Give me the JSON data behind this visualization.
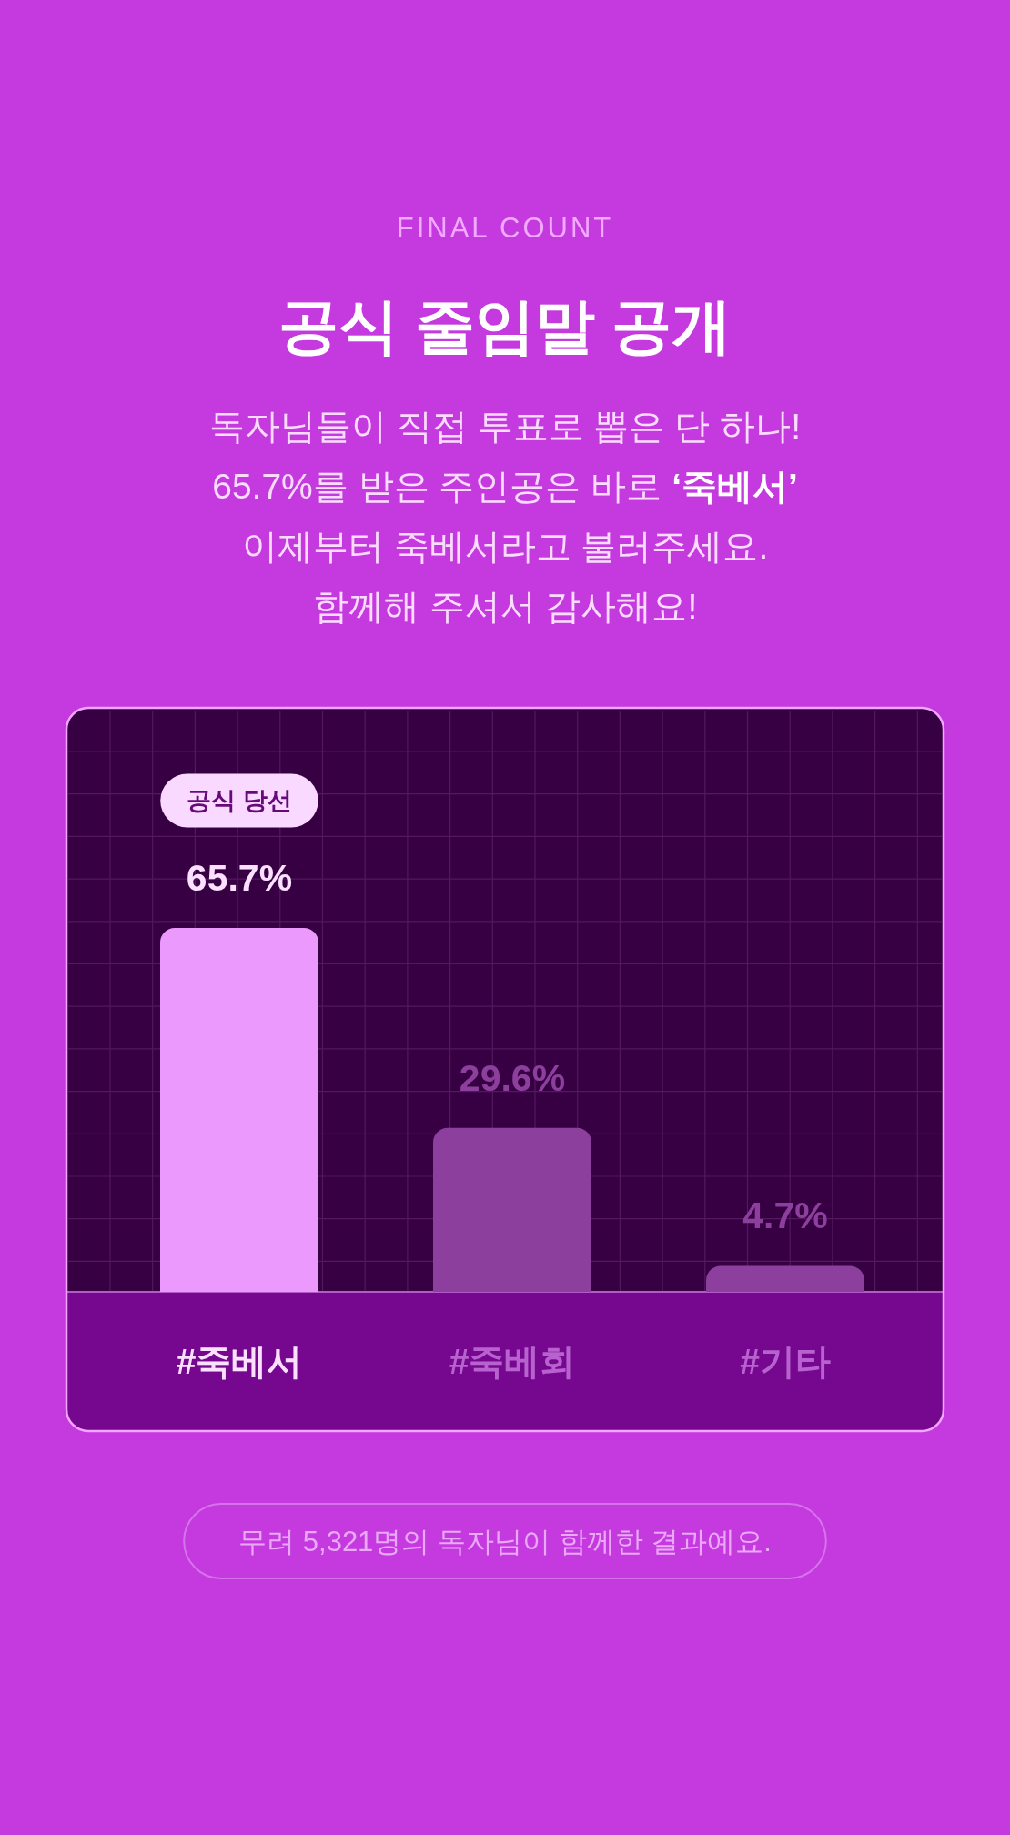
{
  "chart_data": {
    "type": "bar",
    "title": "공식 줄임말 공개",
    "subtitle": "독자님들이 직접 투표로 뽑은 단 하나!\n65.7%를 받은 주인공은 바로 ‘죽베서’\n이제부터 죽베서라고 불러주세요.\n함께해 주셔서 감사해요!",
    "categories": [
      "#죽베서",
      "#죽베회",
      "#기타"
    ],
    "values": [
      65.7,
      29.6,
      4.7
    ],
    "colors": [
      "#ec99fe",
      "#8d3f9e",
      "#8d3f9e"
    ],
    "value_labels": [
      "65.7%",
      "29.6%",
      "4.7%"
    ],
    "grid": true,
    "annotations": [
      "FINAL COUNT",
      "공식 당선",
      "무려 5,321명의 독자님이 함께한 결과예요."
    ]
  }
}
